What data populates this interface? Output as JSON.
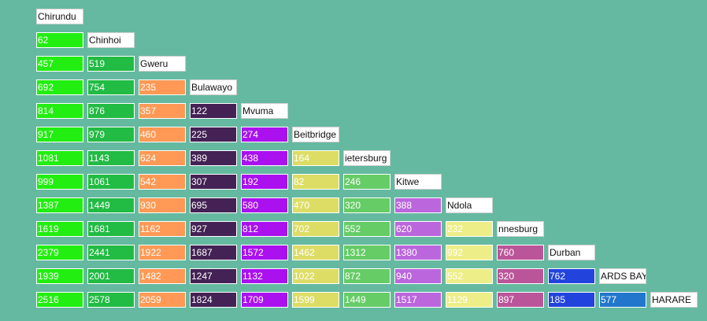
{
  "labels": [
    "Chirundu",
    "Chinhoi",
    "Gweru",
    "Bulawayo",
    "Mvuma",
    "Beitbridge",
    "ietersburg",
    "Kitwe",
    "Ndola",
    "nnesburg",
    "Durban",
    "ARDS BAY",
    "HARARE"
  ],
  "column_colors": [
    "#22ee11",
    "#22bb44",
    "#ff9955",
    "#442255",
    "#aa11ee",
    "#dddd66",
    "#66cc66",
    "#bb66dd",
    "#eeee88",
    "#bb5599",
    "#2244dd",
    "#2277cc"
  ],
  "rows": [
    [],
    [
      62
    ],
    [
      457,
      519
    ],
    [
      692,
      754,
      235
    ],
    [
      814,
      876,
      357,
      122
    ],
    [
      917,
      979,
      460,
      225,
      274
    ],
    [
      1081,
      1143,
      624,
      389,
      438,
      164
    ],
    [
      999,
      1061,
      542,
      307,
      192,
      82,
      246
    ],
    [
      1387,
      1449,
      930,
      695,
      580,
      470,
      320,
      388
    ],
    [
      1619,
      1681,
      1162,
      927,
      812,
      702,
      552,
      620,
      232
    ],
    [
      2379,
      2441,
      1922,
      1687,
      1572,
      1462,
      1312,
      1380,
      992,
      760
    ],
    [
      1939,
      2001,
      1482,
      1247,
      1132,
      1022,
      872,
      940,
      552,
      320,
      762
    ],
    [
      2516,
      2578,
      2059,
      1824,
      1709,
      1599,
      1449,
      1517,
      1129,
      897,
      185,
      577
    ]
  ]
}
